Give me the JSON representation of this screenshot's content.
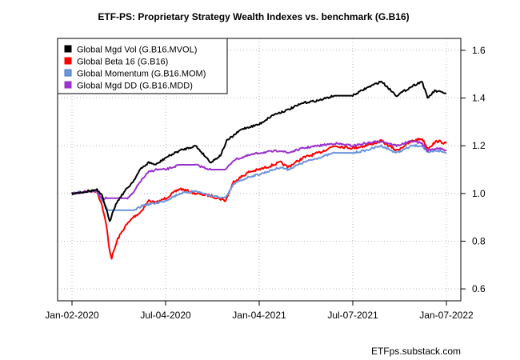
{
  "chart_data": {
    "type": "line",
    "title": "ETF-PS: Proprietary Strategy Wealth Indexes vs. benchmark (G.B16)",
    "xlabel": "",
    "ylabel": "",
    "x_ticks": [
      "Jan-02-2020",
      "Jul-04-2020",
      "Jan-04-2021",
      "Jul-07-2021",
      "Jan-07-2022"
    ],
    "xlim": [
      "2020-01-02",
      "2022-01-07"
    ],
    "ylim": [
      0.55,
      1.65
    ],
    "y_ticks": [
      0.6,
      0.8,
      1.0,
      1.2,
      1.4,
      1.6
    ],
    "y_tick_labels": [
      "0.6",
      "0.8",
      "1.0",
      "1.2",
      "1.4",
      "1.6"
    ],
    "y_axis_side": "right",
    "grid": true,
    "legend_position": "top-left",
    "series": [
      {
        "name": "Global Mgd Vol (G.B16.MVOL)",
        "color": "#000000",
        "points": [
          [
            "2020-01-02",
            1.0
          ],
          [
            "2020-01-20",
            1.005
          ],
          [
            "2020-02-05",
            1.01
          ],
          [
            "2020-02-20",
            1.015
          ],
          [
            "2020-03-01",
            0.99
          ],
          [
            "2020-03-10",
            0.93
          ],
          [
            "2020-03-16",
            0.88
          ],
          [
            "2020-03-23",
            0.93
          ],
          [
            "2020-04-01",
            0.97
          ],
          [
            "2020-04-15",
            1.01
          ],
          [
            "2020-05-01",
            1.05
          ],
          [
            "2020-05-15",
            1.1
          ],
          [
            "2020-06-01",
            1.13
          ],
          [
            "2020-06-15",
            1.12
          ],
          [
            "2020-07-04",
            1.15
          ],
          [
            "2020-08-01",
            1.18
          ],
          [
            "2020-09-01",
            1.2
          ],
          [
            "2020-10-01",
            1.13
          ],
          [
            "2020-10-20",
            1.16
          ],
          [
            "2020-11-01",
            1.22
          ],
          [
            "2020-12-01",
            1.27
          ],
          [
            "2021-01-04",
            1.29
          ],
          [
            "2021-02-01",
            1.33
          ],
          [
            "2021-03-01",
            1.35
          ],
          [
            "2021-04-01",
            1.38
          ],
          [
            "2021-05-01",
            1.39
          ],
          [
            "2021-06-01",
            1.41
          ],
          [
            "2021-07-07",
            1.41
          ],
          [
            "2021-08-01",
            1.44
          ],
          [
            "2021-09-01",
            1.47
          ],
          [
            "2021-10-01",
            1.41
          ],
          [
            "2021-11-01",
            1.45
          ],
          [
            "2021-11-20",
            1.47
          ],
          [
            "2021-12-01",
            1.4
          ],
          [
            "2021-12-15",
            1.43
          ],
          [
            "2022-01-07",
            1.42
          ]
        ]
      },
      {
        "name": "Global Beta 16 (G.B16)",
        "color": "#ff0000",
        "points": [
          [
            "2020-01-02",
            1.0
          ],
          [
            "2020-01-20",
            1.005
          ],
          [
            "2020-02-05",
            1.01
          ],
          [
            "2020-02-20",
            1.01
          ],
          [
            "2020-03-01",
            0.95
          ],
          [
            "2020-03-10",
            0.86
          ],
          [
            "2020-03-16",
            0.76
          ],
          [
            "2020-03-20",
            0.73
          ],
          [
            "2020-04-01",
            0.81
          ],
          [
            "2020-04-15",
            0.86
          ],
          [
            "2020-05-01",
            0.9
          ],
          [
            "2020-05-15",
            0.92
          ],
          [
            "2020-06-01",
            0.97
          ],
          [
            "2020-06-15",
            0.96
          ],
          [
            "2020-07-04",
            0.98
          ],
          [
            "2020-08-01",
            1.02
          ],
          [
            "2020-09-01",
            1.0
          ],
          [
            "2020-10-01",
            0.99
          ],
          [
            "2020-10-30",
            0.97
          ],
          [
            "2020-11-15",
            1.05
          ],
          [
            "2020-12-15",
            1.09
          ],
          [
            "2021-01-04",
            1.1
          ],
          [
            "2021-02-15",
            1.13
          ],
          [
            "2021-03-01",
            1.11
          ],
          [
            "2021-04-01",
            1.15
          ],
          [
            "2021-05-01",
            1.17
          ],
          [
            "2021-06-01",
            1.2
          ],
          [
            "2021-07-07",
            1.19
          ],
          [
            "2021-08-01",
            1.2
          ],
          [
            "2021-09-01",
            1.22
          ],
          [
            "2021-10-01",
            1.18
          ],
          [
            "2021-11-01",
            1.22
          ],
          [
            "2021-11-20",
            1.23
          ],
          [
            "2021-12-01",
            1.19
          ],
          [
            "2021-12-20",
            1.22
          ],
          [
            "2022-01-07",
            1.21
          ]
        ]
      },
      {
        "name": "Global Momentum (G.B16.MOM)",
        "color": "#6a96dc",
        "points": [
          [
            "2020-01-02",
            1.0
          ],
          [
            "2020-01-20",
            1.005
          ],
          [
            "2020-02-05",
            1.01
          ],
          [
            "2020-02-20",
            1.01
          ],
          [
            "2020-03-01",
            0.97
          ],
          [
            "2020-03-10",
            0.94
          ],
          [
            "2020-03-12",
            0.93
          ],
          [
            "2020-05-05",
            0.93
          ],
          [
            "2020-05-20",
            0.95
          ],
          [
            "2020-06-15",
            0.96
          ],
          [
            "2020-07-04",
            0.97
          ],
          [
            "2020-08-01",
            1.0
          ],
          [
            "2020-09-01",
            1.01
          ],
          [
            "2020-10-01",
            0.99
          ],
          [
            "2020-10-30",
            0.98
          ],
          [
            "2020-11-15",
            1.04
          ],
          [
            "2020-12-15",
            1.07
          ],
          [
            "2021-01-04",
            1.08
          ],
          [
            "2021-02-15",
            1.11
          ],
          [
            "2021-03-01",
            1.1
          ],
          [
            "2021-04-01",
            1.13
          ],
          [
            "2021-05-01",
            1.15
          ],
          [
            "2021-06-01",
            1.17
          ],
          [
            "2021-07-07",
            1.17
          ],
          [
            "2021-08-01",
            1.18
          ],
          [
            "2021-09-01",
            1.2
          ],
          [
            "2021-10-01",
            1.17
          ],
          [
            "2021-11-01",
            1.2
          ],
          [
            "2021-11-20",
            1.2
          ],
          [
            "2021-12-01",
            1.17
          ],
          [
            "2021-12-20",
            1.18
          ],
          [
            "2022-01-07",
            1.17
          ]
        ]
      },
      {
        "name": "Global Mgd DD (G.B16.MDD)",
        "color": "#9a32cd",
        "points": [
          [
            "2020-01-02",
            1.0
          ],
          [
            "2020-01-20",
            1.005
          ],
          [
            "2020-02-05",
            1.01
          ],
          [
            "2020-02-20",
            1.01
          ],
          [
            "2020-03-01",
            0.98
          ],
          [
            "2020-03-10",
            0.98
          ],
          [
            "2020-04-20",
            0.98
          ],
          [
            "2020-05-01",
            1.0
          ],
          [
            "2020-05-15",
            1.05
          ],
          [
            "2020-06-01",
            1.09
          ],
          [
            "2020-06-15",
            1.1
          ],
          [
            "2020-07-04",
            1.1
          ],
          [
            "2020-08-01",
            1.12
          ],
          [
            "2020-09-01",
            1.12
          ],
          [
            "2020-10-01",
            1.1
          ],
          [
            "2020-10-30",
            1.1
          ],
          [
            "2020-11-15",
            1.14
          ],
          [
            "2020-12-15",
            1.16
          ],
          [
            "2021-01-04",
            1.17
          ],
          [
            "2021-02-15",
            1.18
          ],
          [
            "2021-03-01",
            1.17
          ],
          [
            "2021-04-01",
            1.19
          ],
          [
            "2021-05-01",
            1.2
          ],
          [
            "2021-06-01",
            1.21
          ],
          [
            "2021-07-07",
            1.2
          ],
          [
            "2021-08-01",
            1.21
          ],
          [
            "2021-09-01",
            1.22
          ],
          [
            "2021-10-01",
            1.2
          ],
          [
            "2021-11-01",
            1.22
          ],
          [
            "2021-11-20",
            1.21
          ],
          [
            "2021-12-01",
            1.18
          ],
          [
            "2021-12-20",
            1.19
          ],
          [
            "2022-01-07",
            1.18
          ]
        ]
      }
    ]
  },
  "footer": {
    "credit": "ETFps.substack.com"
  }
}
